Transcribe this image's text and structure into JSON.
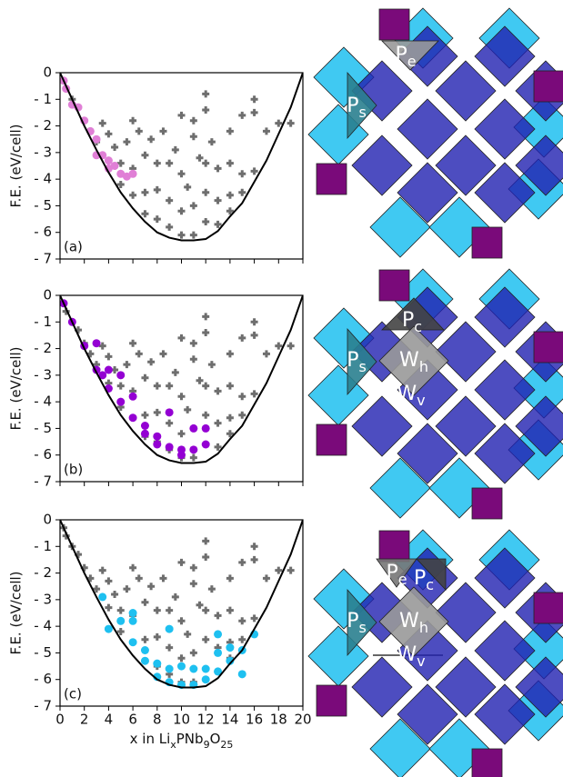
{
  "chart_data": [
    {
      "type": "scatter",
      "annotation": "(a)",
      "ylabel": "F.E. (eV/cell)",
      "xlim": [
        0,
        20
      ],
      "ylim": [
        -7,
        0
      ],
      "xticks": [
        0,
        2,
        4,
        6,
        8,
        10,
        12,
        14,
        16,
        18,
        20
      ],
      "yticks": [
        0,
        {
          "value": -1,
          "label": "- 1"
        },
        {
          "value": -2,
          "label": "- 2"
        },
        {
          "value": -3,
          "label": "- 3"
        },
        {
          "value": -4,
          "label": "- 4"
        },
        {
          "value": -5,
          "label": "- 5"
        },
        {
          "value": -6,
          "label": "- 6"
        },
        {
          "value": -7,
          "label": "- 7"
        }
      ],
      "series": [
        {
          "marker": "plus",
          "color": "#6e6e6e",
          "x": [
            0.3,
            0.5,
            1,
            1.5,
            2,
            2.5,
            3,
            3.5,
            4,
            4,
            4.5,
            5,
            5,
            5.5,
            6,
            6,
            6,
            6.5,
            7,
            7,
            7,
            7.5,
            8,
            8,
            8,
            8.5,
            9,
            9,
            9,
            9.5,
            10,
            10,
            10,
            10.5,
            11,
            11,
            11,
            11.5,
            12,
            12,
            12,
            12.5,
            13,
            13,
            13,
            14,
            14,
            14,
            14,
            15,
            15,
            15,
            16,
            16,
            16,
            17,
            18,
            19,
            12,
            12,
            10,
            11
          ],
          "values": [
            -0.3,
            -0.6,
            -1,
            -1.3,
            -1.8,
            -2.2,
            -2.6,
            -1.9,
            -2.3,
            -3.3,
            -2.8,
            -3.4,
            -4.2,
            -2.6,
            -1.8,
            -3.6,
            -4.6,
            -2.2,
            -3.1,
            -4.5,
            -5.3,
            -2.5,
            -3.4,
            -4.4,
            -5.5,
            -2.2,
            -3.4,
            -4.8,
            -5.8,
            -2.9,
            -3.8,
            -5.2,
            -6.1,
            -4.3,
            -2.4,
            -5,
            -6.1,
            -3.2,
            -3.4,
            -4.5,
            -5.6,
            -2.6,
            -3.6,
            -4.8,
            -5.7,
            -2.2,
            -3.4,
            -4.6,
            -5.2,
            -1.6,
            -3.8,
            -4.5,
            -1,
            -1.5,
            -3.7,
            -2.2,
            -1.9,
            -1.9,
            -0.8,
            -1.4,
            -1.6,
            -1.8
          ]
        },
        {
          "marker": "circle",
          "color": "#e07fd6",
          "x": [
            0.3,
            0.5,
            1,
            1.5,
            2,
            2.5,
            3,
            3,
            3.5,
            4,
            4,
            4.5,
            5,
            5.5,
            6
          ],
          "values": [
            -0.3,
            -0.6,
            -1.2,
            -1.3,
            -1.8,
            -2.2,
            -2.5,
            -3.1,
            -3.1,
            -3.3,
            -3.6,
            -3.5,
            -3.8,
            -3.9,
            -3.8
          ]
        },
        {
          "marker": "line",
          "color": "#000000",
          "x": [
            0,
            1,
            2,
            3,
            4,
            5,
            6,
            7,
            8,
            9,
            10,
            11,
            12,
            13,
            14,
            15,
            16,
            17,
            18,
            19,
            20
          ],
          "values": [
            0,
            -1,
            -2,
            -2.9,
            -3.75,
            -4.5,
            -5.1,
            -5.6,
            -6,
            -6.2,
            -6.3,
            -6.3,
            -6.25,
            -5.95,
            -5.4,
            -4.9,
            -4.1,
            -3.3,
            -2.3,
            -1.3,
            0
          ]
        }
      ]
    },
    {
      "type": "scatter",
      "annotation": "(b)",
      "ylabel": "F.E. (eV/cell)",
      "xlim": [
        0,
        20
      ],
      "ylim": [
        -7,
        0
      ],
      "xticks": [
        0,
        2,
        4,
        6,
        8,
        10,
        12,
        14,
        16,
        18,
        20
      ],
      "yticks": [
        0,
        {
          "value": -1,
          "label": "- 1"
        },
        {
          "value": -2,
          "label": "- 2"
        },
        {
          "value": -3,
          "label": "- 3"
        },
        {
          "value": -4,
          "label": "- 4"
        },
        {
          "value": -5,
          "label": "- 5"
        },
        {
          "value": -6,
          "label": "- 6"
        },
        {
          "value": -7,
          "label": "- 7"
        }
      ],
      "series": [
        {
          "marker": "plus",
          "color": "#6e6e6e",
          "x": [
            0.3,
            0.5,
            1,
            1.5,
            2,
            2.5,
            3,
            3.5,
            4,
            4,
            4.5,
            5,
            5,
            5.5,
            6,
            6,
            6,
            6.5,
            7,
            7,
            7,
            7.5,
            8,
            8,
            8,
            8.5,
            9,
            9,
            9,
            9.5,
            10,
            10,
            10,
            10.5,
            11,
            11,
            11,
            11.5,
            12,
            12,
            12,
            12.5,
            13,
            13,
            13,
            14,
            14,
            14,
            14,
            15,
            15,
            15,
            16,
            16,
            16,
            17,
            18,
            19,
            12,
            12,
            10,
            11
          ],
          "values": [
            -0.3,
            -0.6,
            -1,
            -1.3,
            -1.8,
            -2.2,
            -2.6,
            -1.9,
            -2.3,
            -3.3,
            -2.8,
            -3.4,
            -4.2,
            -2.6,
            -1.8,
            -3.6,
            -4.6,
            -2.2,
            -3.1,
            -4.5,
            -5.3,
            -2.5,
            -3.4,
            -4.4,
            -5.5,
            -2.2,
            -3.4,
            -4.8,
            -5.8,
            -2.9,
            -3.8,
            -5.2,
            -6.1,
            -4.3,
            -2.4,
            -5,
            -6.1,
            -3.2,
            -3.4,
            -4.5,
            -5.6,
            -2.6,
            -3.6,
            -4.8,
            -5.7,
            -2.2,
            -3.4,
            -4.6,
            -5.2,
            -1.6,
            -3.8,
            -4.5,
            -1,
            -1.5,
            -3.7,
            -2.2,
            -1.9,
            -1.9,
            -0.8,
            -1.4,
            -1.6,
            -1.8
          ]
        },
        {
          "marker": "circle",
          "color": "#9400d3",
          "x": [
            0.3,
            1,
            2,
            3,
            3,
            3.5,
            4,
            4,
            5,
            5,
            6,
            6,
            7,
            7,
            8,
            8,
            9,
            9,
            10,
            10,
            11,
            11,
            12,
            12
          ],
          "values": [
            -0.3,
            -1,
            -1.9,
            -1.8,
            -2.8,
            -3,
            -2.8,
            -3.5,
            -3,
            -4,
            -3.8,
            -4.6,
            -4.9,
            -5.2,
            -5.3,
            -5.6,
            -5.7,
            -4.4,
            -5.8,
            -6,
            -5.8,
            -5,
            -5.6,
            -5
          ]
        },
        {
          "marker": "line",
          "color": "#000000",
          "x": [
            0,
            1,
            2,
            3,
            4,
            5,
            6,
            7,
            8,
            9,
            10,
            11,
            12,
            13,
            14,
            15,
            16,
            17,
            18,
            19,
            20
          ],
          "values": [
            0,
            -1,
            -2,
            -2.9,
            -3.75,
            -4.5,
            -5.1,
            -5.6,
            -6,
            -6.2,
            -6.3,
            -6.3,
            -6.25,
            -5.95,
            -5.4,
            -4.9,
            -4.1,
            -3.3,
            -2.3,
            -1.3,
            0
          ]
        }
      ]
    },
    {
      "type": "scatter",
      "annotation": "(c)",
      "ylabel": "F.E. (eV/cell)",
      "xlabel": [
        "x in Li",
        "x",
        "PNb",
        "9",
        "O",
        "25"
      ],
      "xlim": [
        0,
        20
      ],
      "ylim": [
        -7,
        0
      ],
      "xticks": [
        0,
        2,
        4,
        6,
        8,
        10,
        12,
        14,
        16,
        18,
        20
      ],
      "yticks": [
        0,
        {
          "value": -1,
          "label": "- 1"
        },
        {
          "value": -2,
          "label": "- 2"
        },
        {
          "value": -3,
          "label": "- 3"
        },
        {
          "value": -4,
          "label": "- 4"
        },
        {
          "value": -5,
          "label": "- 5"
        },
        {
          "value": -6,
          "label": "- 6"
        },
        {
          "value": -7,
          "label": "- 7"
        }
      ],
      "series": [
        {
          "marker": "plus",
          "color": "#6e6e6e",
          "x": [
            0.3,
            0.5,
            1,
            1.5,
            2,
            2.5,
            3,
            3.5,
            4,
            4,
            4.5,
            5,
            5,
            5.5,
            6,
            6,
            6,
            6.5,
            7,
            7,
            7,
            7.5,
            8,
            8,
            8,
            8.5,
            9,
            9,
            9,
            9.5,
            10,
            10,
            10,
            10.5,
            11,
            11,
            11,
            11.5,
            12,
            12,
            12,
            12.5,
            13,
            13,
            13,
            14,
            14,
            14,
            14,
            15,
            15,
            15,
            16,
            16,
            16,
            17,
            18,
            19,
            12,
            12,
            10,
            11
          ],
          "values": [
            -0.3,
            -0.6,
            -1,
            -1.3,
            -1.8,
            -2.2,
            -2.6,
            -1.9,
            -2.3,
            -3.3,
            -2.8,
            -3.4,
            -4.2,
            -2.6,
            -1.8,
            -3.6,
            -4.6,
            -2.2,
            -3.1,
            -4.5,
            -5.3,
            -2.5,
            -3.4,
            -4.4,
            -5.5,
            -2.2,
            -3.4,
            -4.8,
            -5.8,
            -2.9,
            -3.8,
            -5.2,
            -6.1,
            -4.3,
            -2.4,
            -5,
            -6.1,
            -3.2,
            -3.4,
            -4.5,
            -5.6,
            -2.6,
            -3.6,
            -4.8,
            -5.7,
            -2.2,
            -3.4,
            -4.6,
            -5.2,
            -1.6,
            -3.8,
            -4.5,
            -1,
            -1.5,
            -3.7,
            -2.2,
            -1.9,
            -1.9,
            -0.8,
            -1.4,
            -1.6,
            -1.8
          ]
        },
        {
          "marker": "circle",
          "color": "#1ec0f0",
          "x": [
            3.5,
            5,
            6,
            6,
            7,
            7,
            8,
            8,
            9,
            9,
            10,
            10,
            11,
            11,
            12,
            12,
            13,
            13,
            14,
            14,
            15,
            15,
            16,
            13,
            9,
            6,
            4
          ],
          "values": [
            -2.9,
            -3.8,
            -3.5,
            -4.6,
            -4.9,
            -5.3,
            -5.4,
            -5.9,
            -5.6,
            -6.1,
            -5.5,
            -6.2,
            -5.6,
            -6.2,
            -5.6,
            -6,
            -5,
            -5.7,
            -4.8,
            -5.3,
            -4.9,
            -5.8,
            -4.3,
            -4.3,
            -4.1,
            -3.8,
            -4.1
          ]
        },
        {
          "marker": "line",
          "color": "#000000",
          "x": [
            0,
            1,
            2,
            3,
            4,
            5,
            6,
            7,
            8,
            9,
            10,
            11,
            12,
            13,
            14,
            15,
            16,
            17,
            18,
            19,
            20
          ],
          "values": [
            0,
            -1,
            -2,
            -2.9,
            -3.75,
            -4.5,
            -5.1,
            -5.6,
            -6,
            -6.2,
            -6.3,
            -6.3,
            -6.25,
            -5.95,
            -5.4,
            -4.9,
            -4.1,
            -3.3,
            -2.3,
            -1.3,
            0
          ]
        }
      ]
    }
  ],
  "diagrams": [
    {
      "labels": [
        {
          "main": "P",
          "sub": "e"
        },
        {
          "main": "P",
          "sub": "s"
        }
      ]
    },
    {
      "labels": [
        {
          "main": "P",
          "sub": "c"
        },
        {
          "main": "P",
          "sub": "s"
        },
        {
          "main": "W",
          "sub": "h"
        },
        {
          "main": "W",
          "sub": "v"
        }
      ]
    },
    {
      "labels": [
        {
          "main": "P",
          "sub": "e"
        },
        {
          "main": "P",
          "sub": "c"
        },
        {
          "main": "P",
          "sub": "s"
        },
        {
          "main": "W",
          "sub": "h"
        },
        {
          "main": "W",
          "sub": "v"
        }
      ]
    }
  ]
}
